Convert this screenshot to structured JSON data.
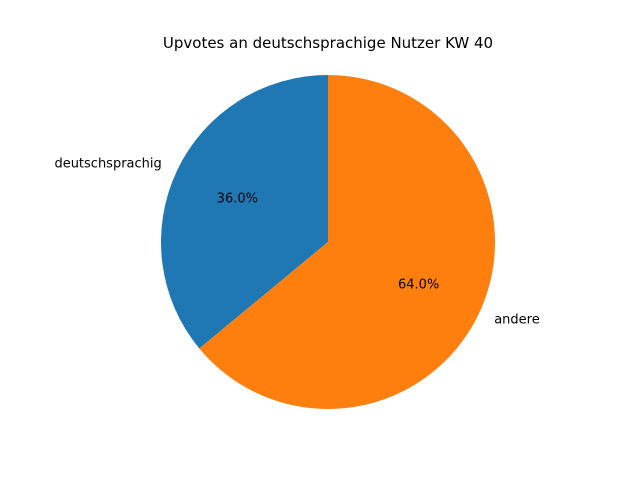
{
  "chart_data": {
    "type": "pie",
    "title": "Upvotes an deutschsprachige Nutzer KW 40",
    "categories": [
      "deutschsprachig",
      "andere"
    ],
    "values": [
      36.0,
      64.0
    ],
    "percent_labels": [
      "36.0%",
      "64.0%"
    ],
    "colors": [
      "#1f77b4",
      "#ff7f0e"
    ],
    "startangle": 90,
    "counterclock": true,
    "legend_position": "none",
    "background": "#ffffff"
  }
}
